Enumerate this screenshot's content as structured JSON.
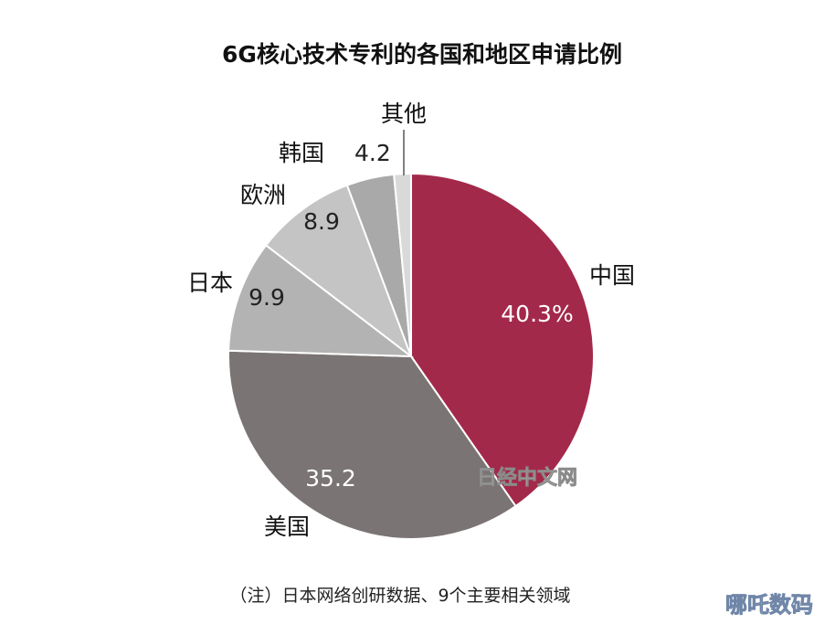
{
  "chart_data": {
    "type": "pie",
    "title": "6G核心技术专利的各国和地区申请比例",
    "slices": [
      {
        "label": "中国",
        "value": 40.3,
        "value_label": "40.3%",
        "color": "#a3294a"
      },
      {
        "label": "美国",
        "value": 35.2,
        "value_label": "35.2",
        "color": "#7a7474"
      },
      {
        "label": "日本",
        "value": 9.9,
        "value_label": "9.9",
        "color": "#b3b3b3"
      },
      {
        "label": "欧洲",
        "value": 8.9,
        "value_label": "8.9",
        "color": "#c4c4c4"
      },
      {
        "label": "韩国",
        "value": 4.2,
        "value_label": "4.2",
        "color": "#a9a9a9"
      },
      {
        "label": "其他",
        "value": 1.5,
        "value_label": "",
        "color": "#d9d9d9"
      }
    ],
    "legend": "none"
  },
  "note": "（注）日本网络创研数据、9个主要相关领域",
  "watermark": "日经中文网",
  "corner_watermark": "哪吒数码"
}
